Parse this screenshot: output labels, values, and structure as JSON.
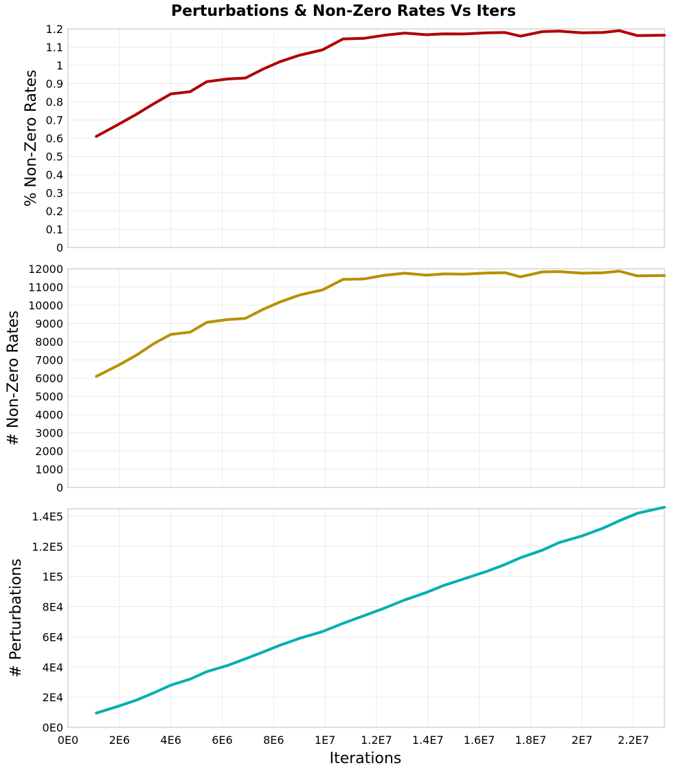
{
  "chart_data": {
    "type": "line",
    "title": "Perturbations & Non-Zero Rates Vs Iters",
    "xlabel": "Iterations",
    "x": [
      1100000,
      1950000,
      2650000,
      3350000,
      4000000,
      4750000,
      5400000,
      6200000,
      6900000,
      7600000,
      8250000,
      9000000,
      9900000,
      10700000,
      11500000,
      12300000,
      13100000,
      13950000,
      14600000,
      15400000,
      16300000,
      17000000,
      17600000,
      18450000,
      19100000,
      20000000,
      20800000,
      21450000,
      22150000,
      23200000
    ],
    "xlim": [
      0,
      23200000
    ],
    "xticks": [
      0,
      2000000,
      4000000,
      6000000,
      8000000,
      10000000,
      12000000,
      14000000,
      16000000,
      18000000,
      20000000,
      22000000
    ],
    "xtick_labels": [
      "0E0",
      "2E6",
      "4E6",
      "6E6",
      "8E6",
      "1E7",
      "1.2E7",
      "1.4E7",
      "1.6E7",
      "1.8E7",
      "2E7",
      "2.2E7"
    ],
    "panels": [
      {
        "ylabel": "% Non-Zero Rates",
        "ylim": [
          0,
          1.2
        ],
        "yticks": [
          0,
          0.1,
          0.2,
          0.3,
          0.4,
          0.5,
          0.6,
          0.7,
          0.8,
          0.9,
          1,
          1.1,
          1.2
        ],
        "ytick_labels": [
          "0",
          "0.1",
          "0.2",
          "0.3",
          "0.4",
          "0.5",
          "0.6",
          "0.7",
          "0.8",
          "0.9",
          "1",
          "1.1",
          "1.2"
        ],
        "color": "#b00000",
        "values": [
          0.61,
          0.675,
          0.73,
          0.79,
          0.843,
          0.855,
          0.91,
          0.925,
          0.93,
          0.98,
          1.02,
          1.055,
          1.085,
          1.145,
          1.148,
          1.165,
          1.177,
          1.168,
          1.173,
          1.172,
          1.178,
          1.18,
          1.16,
          1.185,
          1.188,
          1.178,
          1.18,
          1.19,
          1.163,
          1.165
        ]
      },
      {
        "ylabel": "# Non-Zero Rates",
        "ylim": [
          0,
          12000
        ],
        "yticks": [
          0,
          1000,
          2000,
          3000,
          4000,
          5000,
          6000,
          7000,
          8000,
          9000,
          10000,
          11000,
          12000
        ],
        "ytick_labels": [
          "0",
          "1000",
          "2000",
          "3000",
          "4000",
          "5000",
          "6000",
          "7000",
          "8000",
          "9000",
          "10000",
          "11000",
          "12000"
        ],
        "color": "#b89000",
        "values": [
          6100,
          6700,
          7250,
          7900,
          8400,
          8520,
          9060,
          9210,
          9280,
          9780,
          10180,
          10560,
          10840,
          11420,
          11440,
          11640,
          11760,
          11650,
          11720,
          11710,
          11770,
          11790,
          11560,
          11830,
          11850,
          11760,
          11780,
          11870,
          11610,
          11630
        ]
      },
      {
        "ylabel": "# Perturbations",
        "ylim": [
          0,
          145000
        ],
        "yticks": [
          0,
          20000,
          40000,
          60000,
          80000,
          100000,
          120000,
          140000
        ],
        "ytick_labels": [
          "0E0",
          "2E4",
          "4E4",
          "6E4",
          "8E4",
          "1E5",
          "1.2E5",
          "1.4E5"
        ],
        "color": "#00b0b0",
        "values": [
          9500,
          14000,
          18000,
          23000,
          28000,
          32000,
          37000,
          41000,
          45500,
          50000,
          54500,
          59000,
          63500,
          69000,
          74000,
          79000,
          84500,
          89500,
          94000,
          98500,
          103500,
          108000,
          112500,
          117500,
          122500,
          127000,
          132000,
          137000,
          142000,
          146000
        ]
      }
    ]
  }
}
